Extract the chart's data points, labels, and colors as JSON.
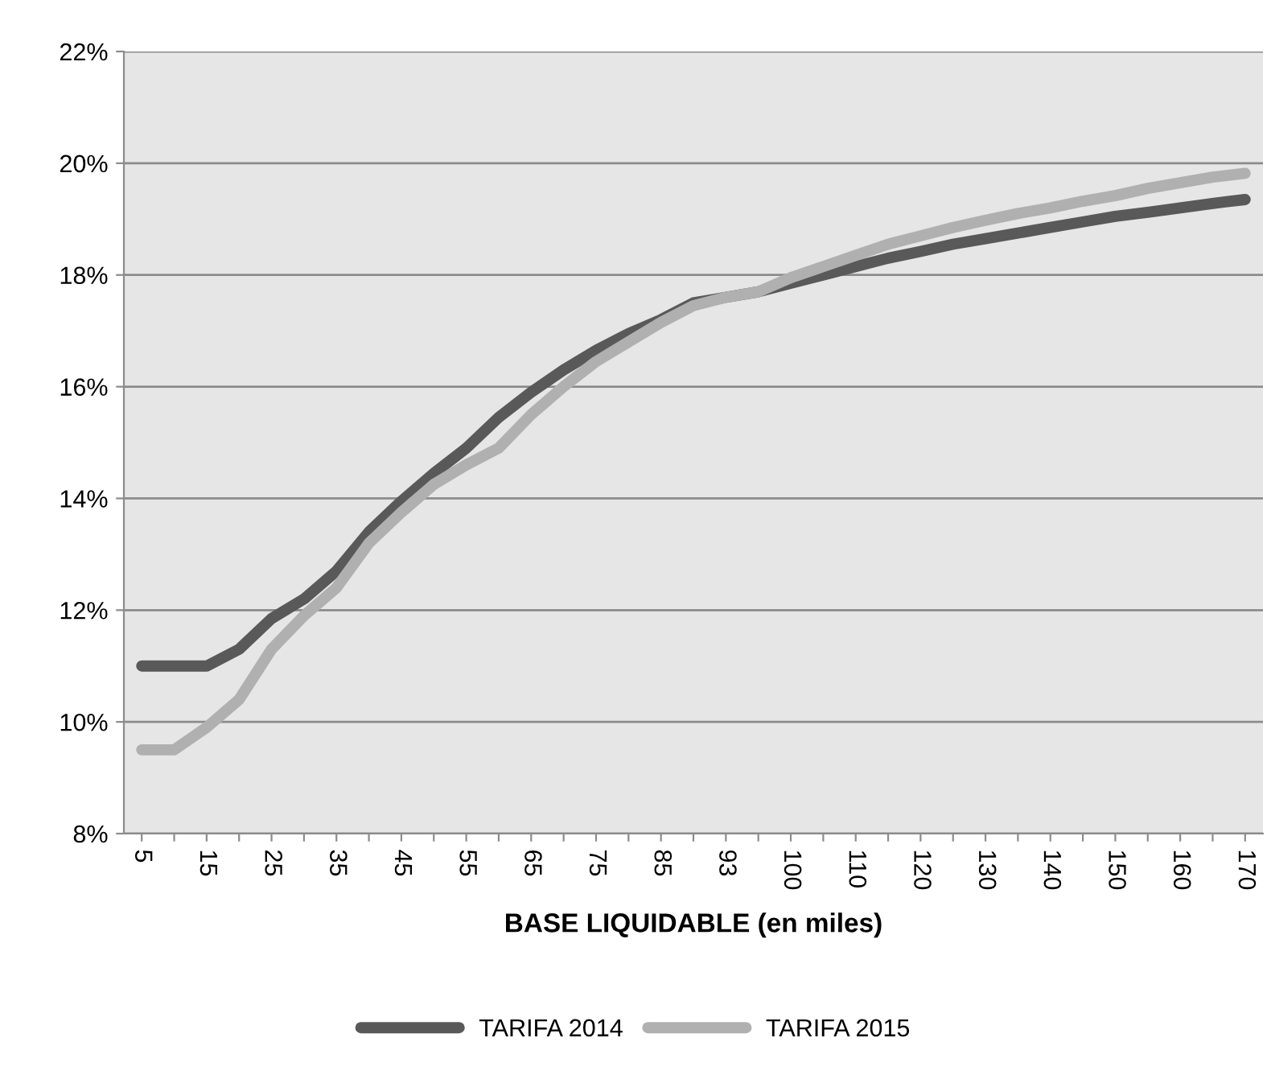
{
  "chart_data": {
    "type": "line",
    "xlabel": "BASE LIQUIDABLE (en miles)",
    "categories": [
      "5",
      null,
      "15",
      null,
      "25",
      null,
      "35",
      null,
      "45",
      null,
      "55",
      null,
      "65",
      null,
      "75",
      null,
      "85",
      null,
      "93",
      null,
      "100",
      null,
      "110",
      null,
      "120",
      null,
      "130",
      null,
      "140",
      null,
      "150",
      null,
      "160",
      null,
      "170"
    ],
    "series": [
      {
        "name": "TARIFA 2014",
        "color": "#595959",
        "values": [
          11.0,
          11.0,
          11.0,
          11.3,
          11.85,
          12.2,
          12.7,
          13.4,
          13.95,
          14.45,
          14.9,
          15.45,
          15.9,
          16.3,
          16.65,
          16.95,
          17.2,
          17.5,
          17.6,
          17.7,
          17.85,
          18.0,
          18.15,
          18.3,
          18.42,
          18.55,
          18.65,
          18.75,
          18.85,
          18.95,
          19.05,
          19.12,
          19.2,
          19.28,
          19.35
        ]
      },
      {
        "name": "TARIFA 2015",
        "color": "#b0b0b0",
        "values": [
          9.5,
          9.5,
          9.9,
          10.4,
          11.3,
          11.9,
          12.4,
          13.2,
          13.75,
          14.25,
          14.6,
          14.9,
          15.5,
          16.0,
          16.45,
          16.8,
          17.15,
          17.45,
          17.6,
          17.7,
          17.95,
          18.15,
          18.35,
          18.55,
          18.7,
          18.85,
          18.98,
          19.1,
          19.2,
          19.32,
          19.42,
          19.55,
          19.65,
          19.75,
          19.82
        ]
      }
    ],
    "ylim": [
      8,
      22
    ],
    "yticks": [
      {
        "value": 8,
        "label": "8%"
      },
      {
        "value": 10,
        "label": "10%"
      },
      {
        "value": 12,
        "label": "12%"
      },
      {
        "value": 14,
        "label": "14%"
      },
      {
        "value": 16,
        "label": "16%"
      },
      {
        "value": 18,
        "label": "18%"
      },
      {
        "value": 20,
        "label": "20%"
      },
      {
        "value": 22,
        "label": "22%"
      }
    ],
    "grid": "y",
    "legend": "bottom",
    "marker": "none",
    "line_style": "solid"
  }
}
